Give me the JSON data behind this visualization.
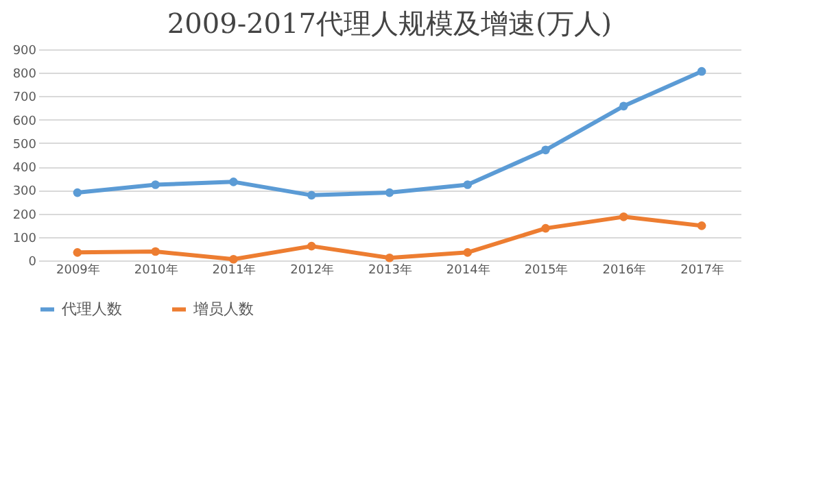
{
  "chart_data": {
    "type": "line",
    "title": "2009-2017代理人规模及增速(万人)",
    "categories": [
      "2009年",
      "2010年",
      "2011年",
      "2012年",
      "2013年",
      "2014年",
      "2015年",
      "2016年",
      "2017年"
    ],
    "series": [
      {
        "name": "代理人数",
        "color": "#5b9bd5",
        "values": [
          289,
          323,
          335,
          278,
          289,
          323,
          471,
          658,
          806
        ]
      },
      {
        "name": "增员人数",
        "color": "#ed7d31",
        "values": [
          34,
          38,
          5,
          61,
          11,
          34,
          137,
          186,
          148
        ]
      }
    ],
    "ylim": [
      0,
      900
    ],
    "yticks": [
      0,
      100,
      200,
      300,
      400,
      500,
      600,
      700,
      800,
      900
    ],
    "grid": "y",
    "legend": "bottom",
    "marker": "circle",
    "line_style": "solid"
  }
}
